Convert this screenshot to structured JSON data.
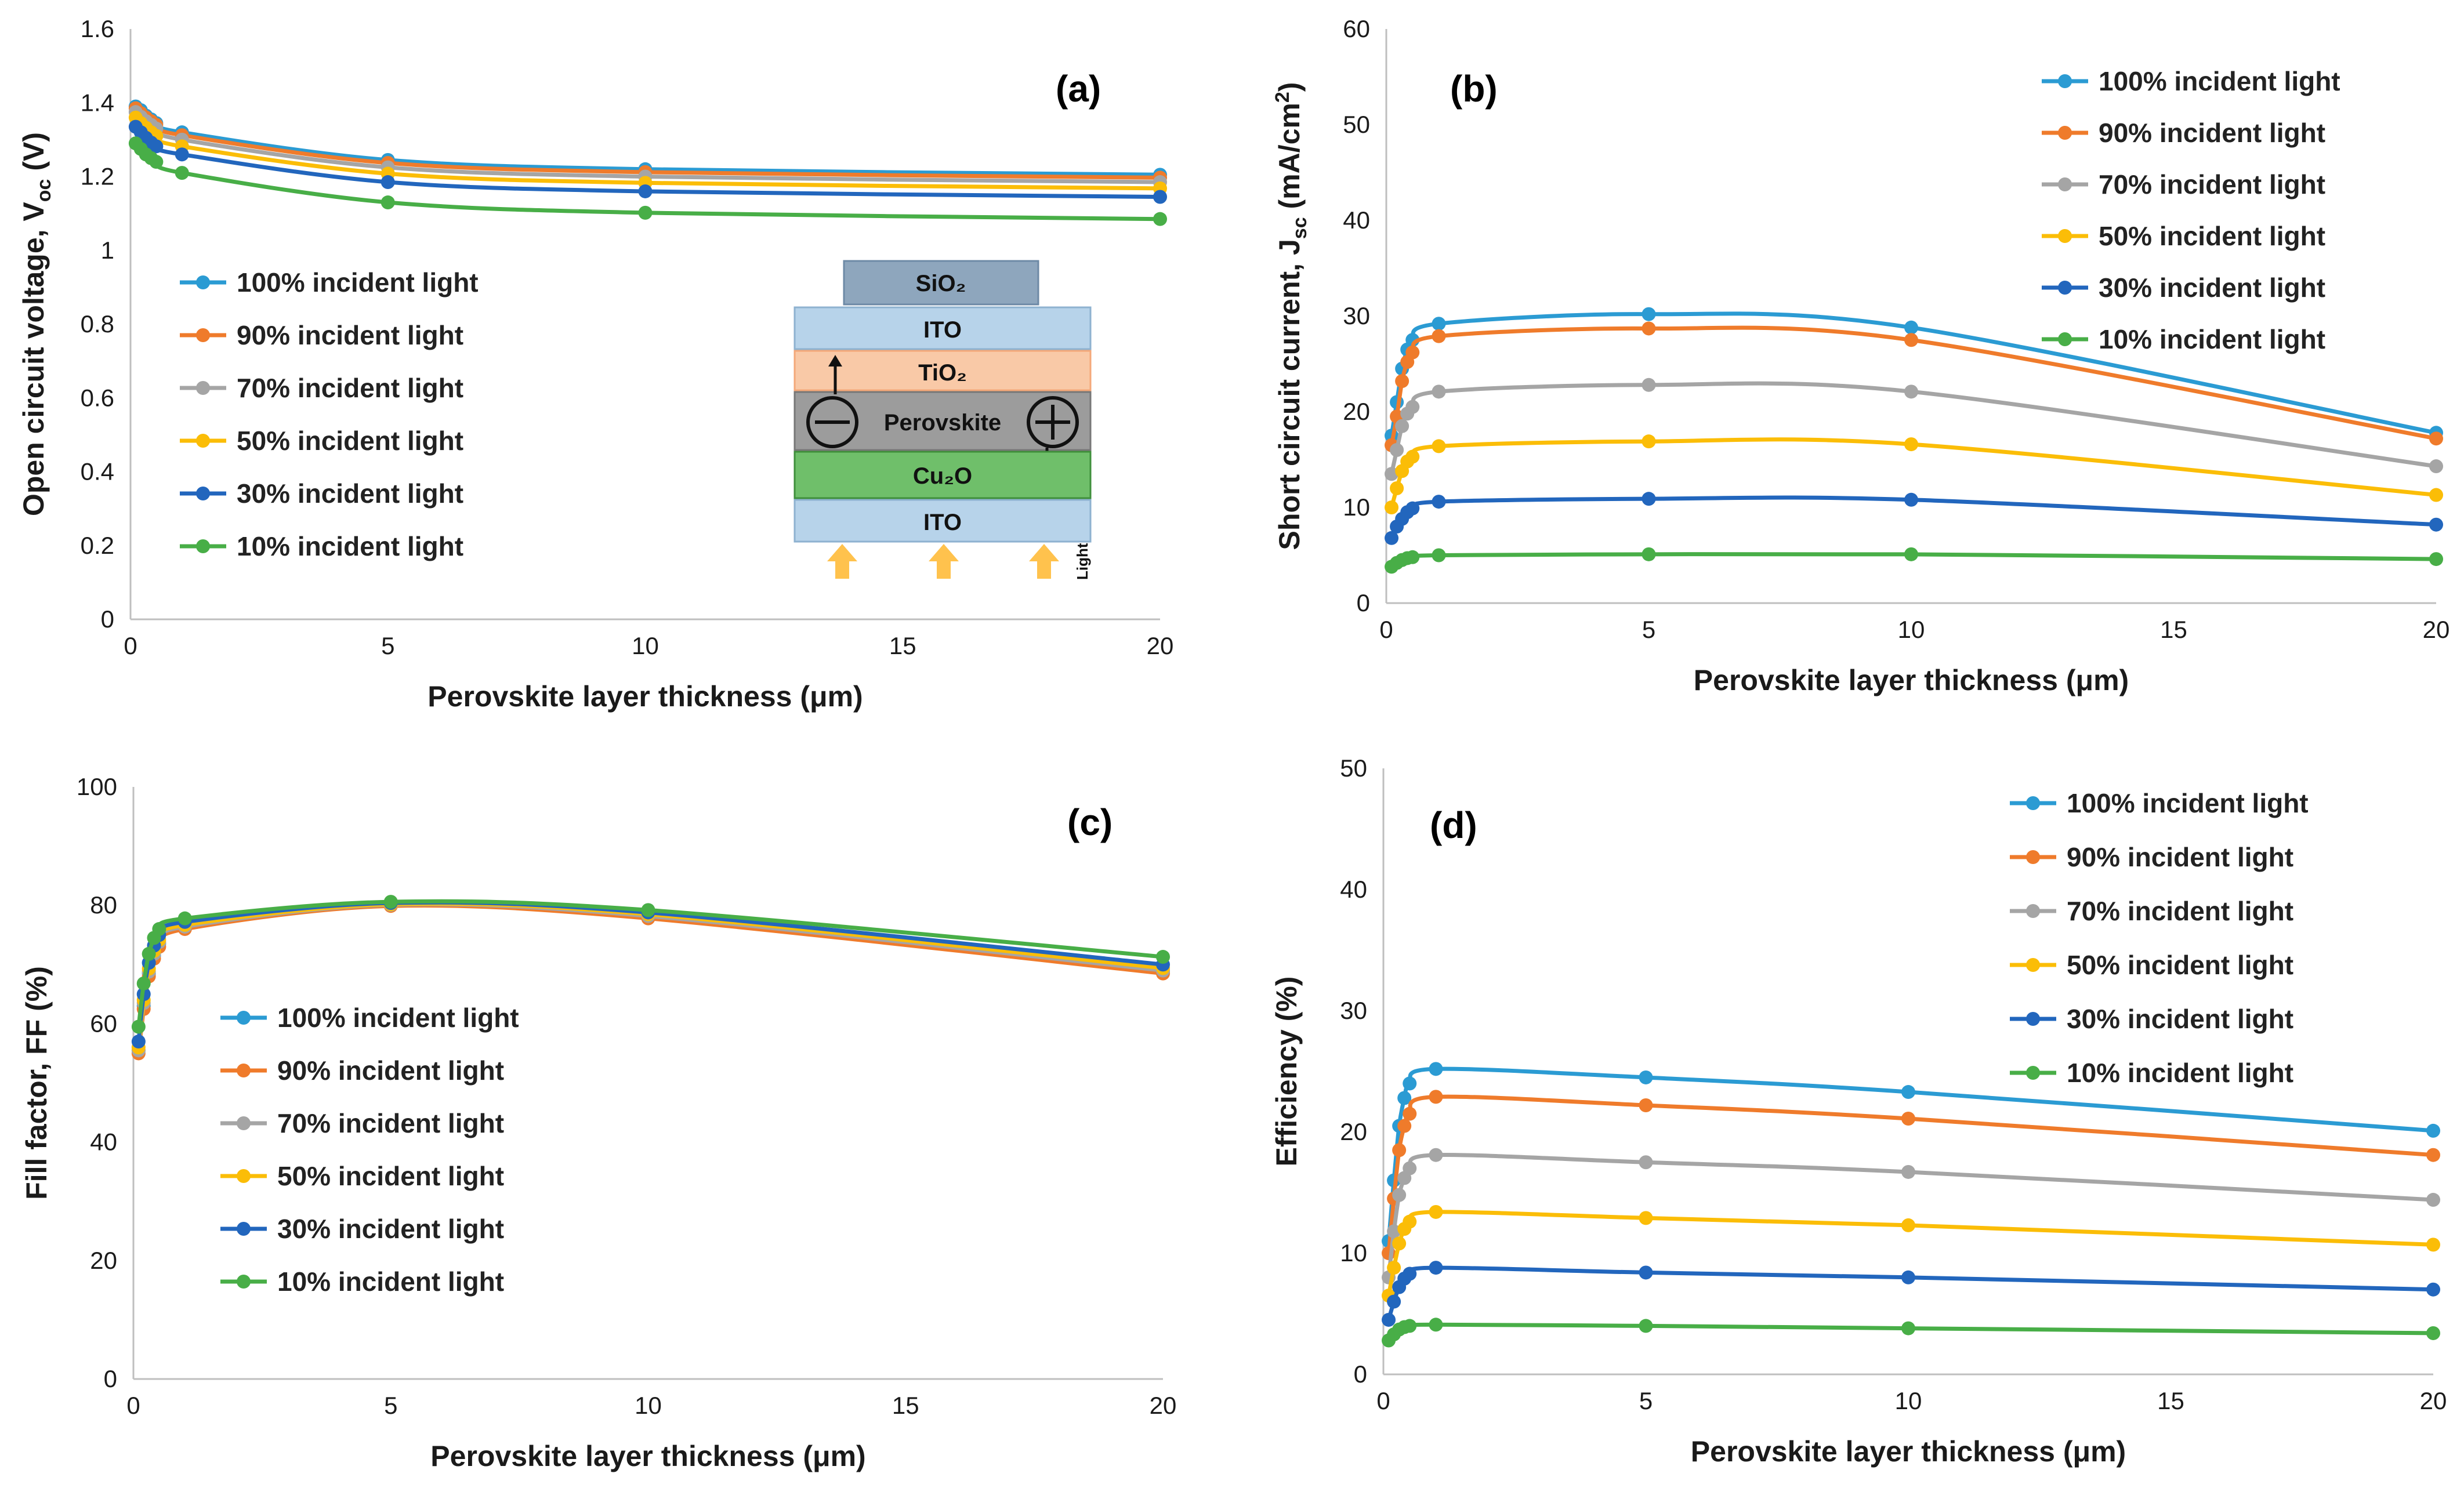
{
  "colors": {
    "100": "#2b9bd3",
    "90": "#ef7b2b",
    "70": "#a5a5a5",
    "50": "#fbbd07",
    "30": "#2266bd",
    "10": "#48ae47"
  },
  "chart_data": [
    {
      "id": "a",
      "type": "line",
      "panel_label": "(a)",
      "xlabel": "Perovskite layer thickness (μm)",
      "ylabel": "Open circuit voltage, V",
      "ylabel_sub": "oc",
      "ylabel_tail": " (V)",
      "xlim": [
        0,
        20
      ],
      "ylim": [
        0,
        1.6
      ],
      "xticks": [
        "0",
        "5",
        "10",
        "15",
        "20"
      ],
      "yticks": [
        "0",
        "0.2",
        "0.4",
        "0.6",
        "0.8",
        "1",
        "1.2",
        "1.4",
        "1.6"
      ],
      "x": [
        0.1,
        0.2,
        0.3,
        0.4,
        0.5,
        1,
        5,
        10,
        20
      ],
      "series": [
        {
          "name": "100% incident light",
          "key": "100",
          "values": [
            1.39,
            1.38,
            1.365,
            1.355,
            1.345,
            1.32,
            1.245,
            1.22,
            1.205
          ]
        },
        {
          "name": "90% incident light",
          "key": "90",
          "values": [
            1.385,
            1.372,
            1.36,
            1.35,
            1.34,
            1.312,
            1.237,
            1.212,
            1.197
          ]
        },
        {
          "name": "70% incident light",
          "key": "70",
          "values": [
            1.375,
            1.362,
            1.35,
            1.34,
            1.33,
            1.3,
            1.225,
            1.2,
            1.185
          ]
        },
        {
          "name": "50% incident light",
          "key": "50",
          "values": [
            1.36,
            1.345,
            1.332,
            1.32,
            1.31,
            1.282,
            1.208,
            1.183,
            1.168
          ]
        },
        {
          "name": "30% incident light",
          "key": "30",
          "values": [
            1.335,
            1.32,
            1.305,
            1.292,
            1.282,
            1.26,
            1.185,
            1.16,
            1.145
          ]
        },
        {
          "name": "10% incident light",
          "key": "10",
          "values": [
            1.29,
            1.275,
            1.26,
            1.25,
            1.24,
            1.21,
            1.13,
            1.102,
            1.085
          ]
        }
      ]
    },
    {
      "id": "b",
      "type": "line",
      "panel_label": "(b)",
      "xlabel": "Perovskite layer thickness (μm)",
      "ylabel": "Short circuit current, J",
      "ylabel_sub": "sc",
      "ylabel_tail": " (mA/cm",
      "ylabel_sup": "2",
      "ylabel_end": ")",
      "xlim": [
        0,
        20
      ],
      "ylim": [
        0,
        60
      ],
      "xticks": [
        "0",
        "5",
        "10",
        "15",
        "20"
      ],
      "yticks": [
        "0",
        "10",
        "20",
        "30",
        "40",
        "50",
        "60"
      ],
      "x": [
        0.1,
        0.2,
        0.3,
        0.4,
        0.5,
        1,
        5,
        10,
        20
      ],
      "series": [
        {
          "name": "100% incident light",
          "key": "100",
          "values": [
            17.5,
            21,
            24.5,
            26.5,
            27.5,
            29.2,
            30.2,
            28.8,
            17.8
          ]
        },
        {
          "name": "90% incident light",
          "key": "90",
          "values": [
            16.5,
            19.5,
            23.2,
            25.2,
            26.2,
            27.9,
            28.7,
            27.5,
            17.2
          ]
        },
        {
          "name": "70% incident light",
          "key": "70",
          "values": [
            13.5,
            16,
            18.5,
            19.8,
            20.5,
            22.1,
            22.8,
            22.1,
            14.3
          ]
        },
        {
          "name": "50% incident light",
          "key": "50",
          "values": [
            10,
            12,
            13.8,
            14.8,
            15.3,
            16.4,
            16.9,
            16.6,
            11.3
          ]
        },
        {
          "name": "30% incident light",
          "key": "30",
          "values": [
            6.8,
            8,
            8.8,
            9.5,
            9.9,
            10.6,
            10.9,
            10.8,
            8.2
          ]
        },
        {
          "name": "10% incident light",
          "key": "10",
          "values": [
            3.8,
            4.2,
            4.5,
            4.7,
            4.8,
            5.0,
            5.1,
            5.1,
            4.6
          ]
        }
      ],
      "legend": "top-right"
    },
    {
      "id": "c",
      "type": "line",
      "panel_label": "(c)",
      "xlabel": "Perovskite layer thickness (μm)",
      "ylabel": "Fill factor, FF (%)",
      "xlim": [
        0,
        20
      ],
      "ylim": [
        0,
        100
      ],
      "xticks": [
        "0",
        "5",
        "10",
        "15",
        "20"
      ],
      "yticks": [
        "0",
        "20",
        "40",
        "60",
        "80",
        "100"
      ],
      "x": [
        0.1,
        0.2,
        0.3,
        0.4,
        0.5,
        1,
        5,
        10,
        20
      ],
      "series": [
        {
          "name": "100% incident light",
          "key": "100",
          "values": [
            55.5,
            63,
            68.5,
            71.5,
            73.5,
            76.2,
            80.0,
            78.0,
            68.8
          ]
        },
        {
          "name": "90% incident light",
          "key": "90",
          "values": [
            55,
            62.5,
            68,
            71,
            73,
            76.0,
            79.9,
            77.8,
            68.5
          ]
        },
        {
          "name": "70% incident light",
          "key": "70",
          "values": [
            55.5,
            63.5,
            68.8,
            71.8,
            73.8,
            76.4,
            80.1,
            78.2,
            69.0
          ]
        },
        {
          "name": "50% incident light",
          "key": "50",
          "values": [
            56,
            64,
            69.3,
            72.3,
            74.2,
            76.7,
            80.2,
            78.5,
            69.4
          ]
        },
        {
          "name": "30% incident light",
          "key": "30",
          "values": [
            57,
            65,
            70.3,
            73.2,
            75,
            77.2,
            80.4,
            78.8,
            70.0
          ]
        },
        {
          "name": "10% incident light",
          "key": "10",
          "values": [
            59.5,
            66.8,
            71.8,
            74.5,
            76,
            77.8,
            80.6,
            79.2,
            71.3
          ]
        }
      ]
    },
    {
      "id": "d",
      "type": "line",
      "panel_label": "(d)",
      "xlabel": "Perovskite layer thickness (μm)",
      "ylabel": "Efficiency (%)",
      "xlim": [
        0,
        20
      ],
      "ylim": [
        0,
        50
      ],
      "xticks": [
        "0",
        "5",
        "10",
        "15",
        "20"
      ],
      "yticks": [
        "0",
        "10",
        "20",
        "30",
        "40",
        "50"
      ],
      "x": [
        0.1,
        0.2,
        0.3,
        0.4,
        0.5,
        1,
        5,
        10,
        20
      ],
      "series": [
        {
          "name": "100% incident light",
          "key": "100",
          "values": [
            11,
            16,
            20.5,
            22.8,
            24,
            25.2,
            24.5,
            23.3,
            20.1
          ]
        },
        {
          "name": "90% incident light",
          "key": "90",
          "values": [
            10,
            14.5,
            18.5,
            20.5,
            21.5,
            22.9,
            22.2,
            21.1,
            18.1
          ]
        },
        {
          "name": "70% incident light",
          "key": "70",
          "values": [
            8,
            11.8,
            14.8,
            16.2,
            17,
            18.1,
            17.5,
            16.7,
            14.4
          ]
        },
        {
          "name": "50% incident light",
          "key": "50",
          "values": [
            6.5,
            8.8,
            10.8,
            12,
            12.6,
            13.4,
            12.9,
            12.3,
            10.7
          ]
        },
        {
          "name": "30% incident light",
          "key": "30",
          "values": [
            4.5,
            6,
            7.2,
            7.9,
            8.3,
            8.8,
            8.4,
            8.0,
            7.0
          ]
        },
        {
          "name": "10% incident light",
          "key": "10",
          "values": [
            2.8,
            3.3,
            3.7,
            3.9,
            4.0,
            4.1,
            4.0,
            3.8,
            3.4
          ]
        }
      ],
      "legend": "top-right"
    }
  ],
  "inset": {
    "layers": [
      "SiO₂",
      "ITO",
      "TiO₂",
      "Perovskite",
      "Cu₂O",
      "ITO"
    ],
    "light_label": "Light"
  }
}
